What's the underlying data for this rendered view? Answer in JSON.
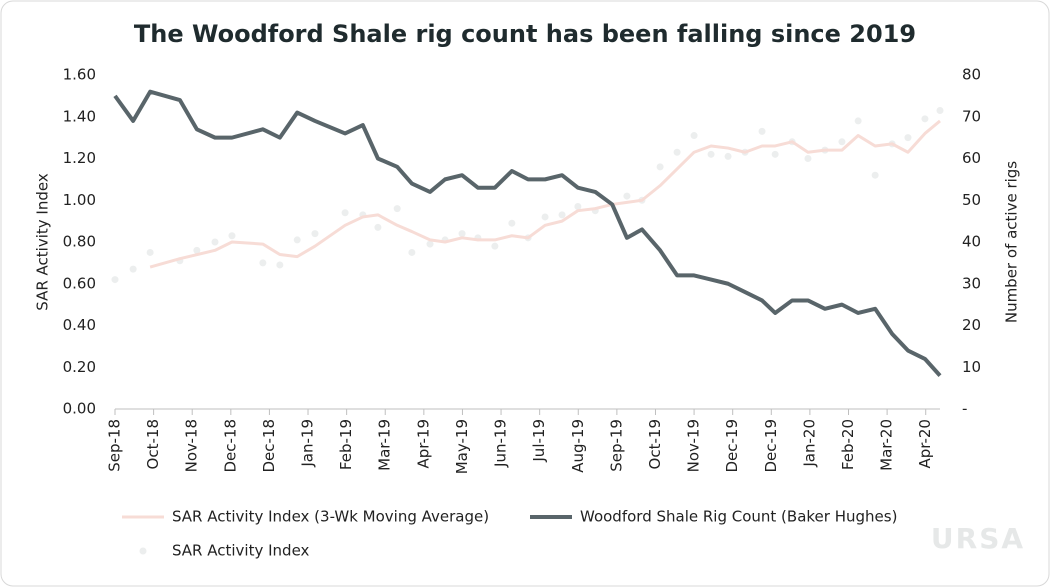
{
  "chart_data": {
    "type": "line",
    "title": "The Woodford Shale rig count has been falling since 2019",
    "ylabel": "SAR Activity Index",
    "y2label": "Number of active rigs",
    "watermark": "URSA",
    "xlim": [
      0,
      21.37
    ],
    "xticks": [
      {
        "value": 0,
        "label": "Sep-18"
      },
      {
        "value": 1,
        "label": "Oct-18"
      },
      {
        "value": 2,
        "label": "Nov-18"
      },
      {
        "value": 3,
        "label": "Dec-18"
      },
      {
        "value": 4,
        "label": "Dec-18"
      },
      {
        "value": 5,
        "label": "Jan-19"
      },
      {
        "value": 6,
        "label": "Feb-19"
      },
      {
        "value": 7,
        "label": "Mar-19"
      },
      {
        "value": 8,
        "label": "Apr-19"
      },
      {
        "value": 9,
        "label": "May-19"
      },
      {
        "value": 10,
        "label": "Jun-19"
      },
      {
        "value": 11,
        "label": "Jul-19"
      },
      {
        "value": 12,
        "label": "Aug-19"
      },
      {
        "value": 13,
        "label": "Sep-19"
      },
      {
        "value": 14,
        "label": "Oct-19"
      },
      {
        "value": 15,
        "label": "Nov-19"
      },
      {
        "value": 16,
        "label": "Dec-19"
      },
      {
        "value": 17,
        "label": "Dec-19"
      },
      {
        "value": 18,
        "label": "Jan-20"
      },
      {
        "value": 19,
        "label": "Feb-20"
      },
      {
        "value": 20,
        "label": "Mar-20"
      },
      {
        "value": 21,
        "label": "Apr-20"
      }
    ],
    "ylim": [
      0,
      1.6
    ],
    "yticks": [
      {
        "value": 0,
        "label": "0.00"
      },
      {
        "value": 0.2,
        "label": "0.20"
      },
      {
        "value": 0.4,
        "label": "0.40"
      },
      {
        "value": 0.6,
        "label": "0.60"
      },
      {
        "value": 0.8,
        "label": "0.80"
      },
      {
        "value": 1,
        "label": "1.00"
      },
      {
        "value": 1.2,
        "label": "1.20"
      },
      {
        "value": 1.4,
        "label": "1.40"
      },
      {
        "value": 1.6,
        "label": "1.60"
      }
    ],
    "y2lim": [
      0,
      80
    ],
    "y2ticks": [
      {
        "value": 0,
        "label": "-"
      },
      10,
      20,
      30,
      40,
      50,
      60,
      70,
      80
    ],
    "series": [
      {
        "name": "SAR Activity Index",
        "type": "scatter",
        "color": "#eceeee",
        "x": [
          0,
          0.47,
          0.91,
          1.68,
          2.12,
          2.59,
          3.03,
          3.83,
          4.27,
          4.72,
          5.18,
          5.96,
          6.42,
          6.81,
          7.31,
          7.69,
          8.16,
          8.55,
          8.99,
          9.4,
          9.84,
          10.28,
          10.7,
          11.14,
          11.58,
          11.99,
          12.44,
          13.26,
          13.65,
          14.12,
          14.56,
          15,
          15.44,
          15.88,
          16.32,
          16.76,
          17.1,
          17.54,
          17.95,
          18.39,
          18.83,
          19.25,
          19.69,
          20.13,
          20.54,
          20.98,
          21.37
        ],
        "values": [
          0.62,
          0.67,
          0.75,
          0.71,
          0.76,
          0.8,
          0.83,
          0.7,
          0.69,
          0.81,
          0.84,
          0.94,
          0.93,
          0.87,
          0.96,
          0.75,
          0.79,
          0.81,
          0.84,
          0.82,
          0.78,
          0.89,
          0.82,
          0.92,
          0.93,
          0.97,
          0.95,
          1.02,
          1,
          1.16,
          1.23,
          1.31,
          1.22,
          1.21,
          1.23,
          1.33,
          1.22,
          1.28,
          1.2,
          1.24,
          1.28,
          1.38,
          1.12,
          1.27,
          1.3,
          1.39,
          1.43
        ]
      },
      {
        "name": "SAR Activity Index (3-Wk Moving Average)",
        "type": "line",
        "color": "#f7dcd6",
        "x": [
          0.91,
          1.68,
          2.59,
          3.03,
          3.83,
          4.27,
          4.72,
          5.18,
          5.96,
          6.42,
          6.81,
          7.31,
          7.69,
          8.16,
          8.55,
          8.99,
          9.4,
          9.84,
          10.28,
          10.7,
          11.14,
          11.58,
          11.99,
          12.44,
          12.88,
          13.26,
          13.65,
          14.12,
          14.56,
          15,
          15.44,
          15.88,
          16.32,
          16.76,
          17.1,
          17.54,
          17.95,
          18.39,
          18.83,
          19.25,
          19.69,
          20.13,
          20.54,
          20.98,
          21.37
        ],
        "values": [
          0.68,
          0.72,
          0.76,
          0.8,
          0.79,
          0.74,
          0.73,
          0.78,
          0.88,
          0.92,
          0.93,
          0.88,
          0.85,
          0.81,
          0.8,
          0.82,
          0.81,
          0.81,
          0.83,
          0.82,
          0.88,
          0.9,
          0.95,
          0.96,
          0.98,
          0.99,
          1,
          1.07,
          1.15,
          1.23,
          1.26,
          1.25,
          1.23,
          1.26,
          1.26,
          1.28,
          1.23,
          1.24,
          1.24,
          1.31,
          1.26,
          1.27,
          1.23,
          1.32,
          1.38
        ]
      },
      {
        "name": "Woodford Shale Rig Count (Baker Hughes)",
        "type": "line",
        "axis": "y2",
        "color": "#59656a",
        "x": [
          0,
          0.47,
          0.91,
          1.68,
          2.12,
          2.59,
          3.03,
          3.83,
          4.27,
          4.72,
          5.18,
          5.96,
          6.42,
          6.81,
          7.31,
          7.69,
          8.16,
          8.55,
          8.99,
          9.4,
          9.84,
          10.28,
          10.7,
          11.14,
          11.58,
          11.99,
          12.44,
          12.88,
          13.26,
          13.65,
          14.12,
          14.56,
          15,
          15.44,
          15.88,
          16.32,
          16.76,
          17.1,
          17.54,
          17.95,
          18.39,
          18.83,
          19.25,
          19.69,
          20.13,
          20.54,
          20.98,
          21.37
        ],
        "values": [
          75,
          69,
          76,
          74,
          67,
          65,
          65,
          67,
          65,
          71,
          69,
          66,
          68,
          60,
          58,
          54,
          52,
          55,
          56,
          53,
          53,
          57,
          55,
          55,
          56,
          53,
          52,
          49,
          41,
          43,
          38,
          32,
          32,
          31,
          30,
          28,
          26,
          23,
          26,
          26,
          24,
          25,
          23,
          24,
          18,
          14,
          12,
          8
        ]
      }
    ]
  }
}
